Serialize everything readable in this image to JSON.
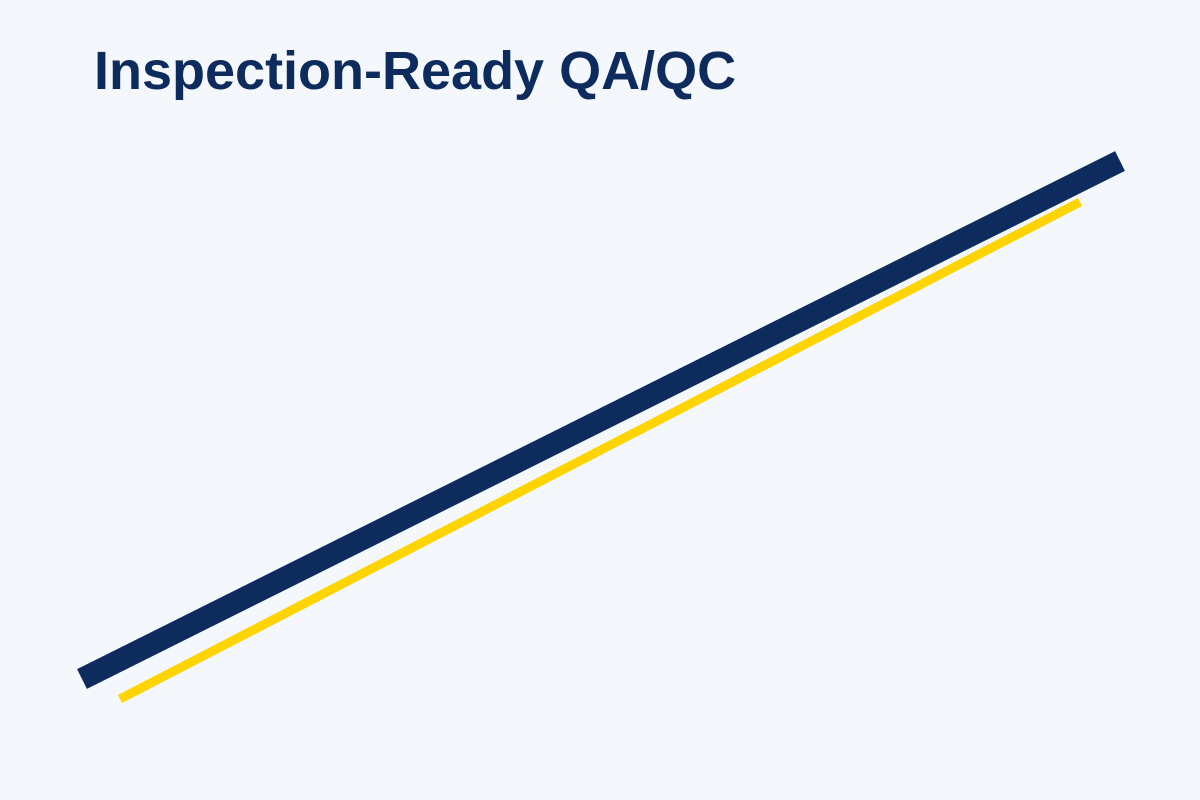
{
  "slide": {
    "title": "Inspection-Ready QA/QC",
    "colors": {
      "background": "#f4f8fd",
      "title": "#0d2b5c",
      "primary_stripe": "#0d2b5c",
      "accent_stripe": "#ffd400"
    }
  }
}
